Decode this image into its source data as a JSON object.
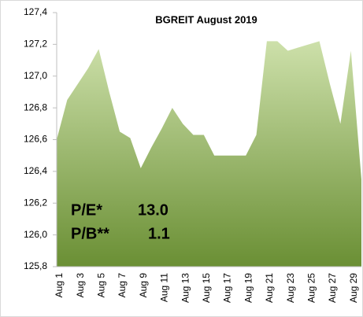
{
  "chart_data": {
    "type": "area",
    "title": "BGREIT August 2019",
    "categories": [
      "Aug 1",
      null,
      "Aug 3",
      null,
      "Aug 5",
      null,
      "Aug 7",
      null,
      "Aug 9",
      null,
      "Aug 11",
      null,
      "Aug 13",
      null,
      "Aug 15",
      null,
      "Aug 17",
      null,
      "Aug 19",
      null,
      "Aug 21",
      null,
      "Aug 23",
      null,
      "Aug 25",
      null,
      "Aug 27",
      null,
      "Aug 29",
      null
    ],
    "values": [
      126.6,
      126.85,
      126.95,
      127.05,
      127.17,
      126.9,
      126.65,
      126.61,
      126.42,
      126.55,
      126.67,
      126.8,
      126.7,
      126.63,
      126.63,
      126.5,
      126.5,
      126.5,
      126.5,
      126.63,
      127.22,
      127.22,
      127.16,
      127.18,
      127.2,
      127.22,
      126.95,
      126.7,
      127.16,
      126.35
    ],
    "color": "#7ea04a",
    "ylim": [
      125.8,
      127.4
    ],
    "yticks": [
      {
        "value": 125.8,
        "label": "125,8"
      },
      {
        "value": 126.0,
        "label": "126,0"
      },
      {
        "value": 126.2,
        "label": "126,2"
      },
      {
        "value": 126.4,
        "label": "126,4"
      },
      {
        "value": 126.6,
        "label": "126,6"
      },
      {
        "value": 126.8,
        "label": "126,8"
      },
      {
        "value": 127.0,
        "label": "127,0"
      },
      {
        "value": 127.2,
        "label": "127,2"
      },
      {
        "value": 127.4,
        "label": "127,4"
      }
    ],
    "annotations": [
      {
        "label": "P/E*",
        "value": "13.0"
      },
      {
        "label": "P/B**",
        "value": "1.1"
      }
    ]
  }
}
